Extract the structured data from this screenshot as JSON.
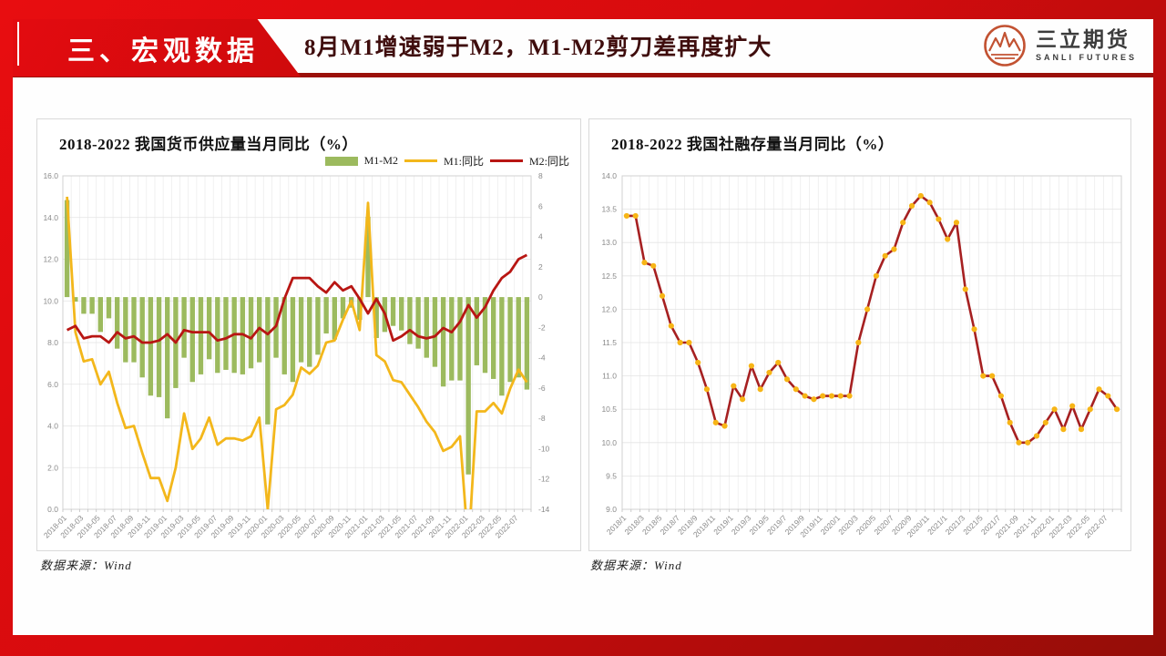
{
  "header": {
    "section_label": "三、宏观数据",
    "title": "8月M1增速弱于M2，M1-M2剪刀差再度扩大",
    "logo_name": "三立期货",
    "logo_subtitle": "SANLI FUTURES"
  },
  "panels": {
    "left": {
      "source": "数据来源：Wind"
    },
    "right": {
      "source": "数据来源：Wind"
    }
  },
  "colors": {
    "bar_green": "#9cba5e",
    "m1_yellow": "#f3b71b",
    "m2_red": "#b81613",
    "sf_line_red": "#a62021",
    "sf_marker_yellow": "#f7b516",
    "frame_red": "#d60b0e",
    "underline_dark_red": "#9b100a",
    "banner_text_dark_red": "#3f0d0d"
  },
  "chart_data": [
    {
      "type": "bar+line combo",
      "title": "2018-2022 我国货币供应量当月同比（%）",
      "legend": [
        "M1-M2",
        "M1:同比",
        "M2:同比"
      ],
      "months": 56,
      "x_range": "2018-01 to 2022-08 (monthly)",
      "x_labels": [
        "2018-01",
        "2018-03",
        "2018-05",
        "2018-07",
        "2018-09",
        "2018-11",
        "2019-01",
        "2019-03",
        "2019-05",
        "2019-07",
        "2019-09",
        "2019-11",
        "2020-01",
        "2020-03",
        "2020-05",
        "2020-07",
        "2020-09",
        "2020-11",
        "2021-01",
        "2021-03",
        "2021-05",
        "2021-07",
        "2021-09",
        "2021-11",
        "2022-01",
        "2022-03",
        "2022-05",
        "2022-07"
      ],
      "left_axis": {
        "min": 0,
        "max": 16,
        "step": 2,
        "ticks": [
          "0.0",
          "2.0",
          "4.0",
          "6.0",
          "8.0",
          "10.0",
          "12.0",
          "14.0",
          "16.0"
        ]
      },
      "right_axis": {
        "min": -14,
        "max": 8,
        "step": 2,
        "ticks": [
          "-14",
          "-12",
          "-10",
          "-8",
          "-6",
          "-4",
          "-2",
          "0",
          "2",
          "4",
          "6",
          "8"
        ]
      },
      "series": {
        "bars": {
          "name": "M1-M2",
          "axis": "right",
          "values": [
            6.4,
            -0.3,
            -1.1,
            -1.1,
            -2.3,
            -1.4,
            -3.4,
            -4.3,
            -4.3,
            -5.3,
            -6.5,
            -6.6,
            -8.0,
            -6.0,
            -4.0,
            -5.6,
            -5.1,
            -4.1,
            -5.0,
            -4.8,
            -5.0,
            -5.1,
            -4.7,
            -4.3,
            -8.4,
            -4.0,
            -5.1,
            -5.6,
            -4.3,
            -4.6,
            -3.8,
            -2.4,
            -2.8,
            -1.4,
            -0.7,
            -1.5,
            5.3,
            -2.7,
            -2.3,
            -1.9,
            -2.2,
            -3.1,
            -3.4,
            -4.0,
            -4.6,
            -5.9,
            -5.5,
            -5.5,
            -11.7,
            -4.5,
            -5.0,
            -5.4,
            -6.5,
            -5.6,
            -5.3,
            -6.1
          ]
        },
        "m1": {
          "name": "M1:同比",
          "axis": "left",
          "values": [
            15.0,
            8.5,
            7.1,
            7.2,
            6.0,
            6.6,
            5.1,
            3.9,
            4.0,
            2.7,
            1.5,
            1.5,
            0.4,
            2.0,
            4.6,
            2.9,
            3.4,
            4.4,
            3.1,
            3.4,
            3.4,
            3.3,
            3.5,
            4.4,
            0.0,
            4.8,
            5.0,
            5.5,
            6.8,
            6.5,
            6.9,
            8.0,
            8.1,
            9.1,
            10.0,
            8.6,
            14.7,
            7.4,
            7.1,
            6.2,
            6.1,
            5.5,
            4.9,
            4.2,
            3.7,
            2.8,
            3.0,
            3.5,
            -1.9,
            4.7,
            4.7,
            5.1,
            4.6,
            5.8,
            6.7,
            6.1
          ]
        },
        "m2": {
          "name": "M2:同比",
          "axis": "left",
          "values": [
            8.6,
            8.8,
            8.2,
            8.3,
            8.3,
            8.0,
            8.5,
            8.2,
            8.3,
            8.0,
            8.0,
            8.1,
            8.4,
            8.0,
            8.6,
            8.5,
            8.5,
            8.5,
            8.1,
            8.2,
            8.4,
            8.4,
            8.2,
            8.7,
            8.4,
            8.8,
            10.1,
            11.1,
            11.1,
            11.1,
            10.7,
            10.4,
            10.9,
            10.5,
            10.7,
            10.1,
            9.4,
            10.1,
            9.4,
            8.1,
            8.3,
            8.6,
            8.3,
            8.2,
            8.3,
            8.7,
            8.5,
            9.0,
            9.8,
            9.2,
            9.7,
            10.5,
            11.1,
            11.4,
            12.0,
            12.2
          ]
        }
      }
    },
    {
      "type": "line",
      "title": "2018-2022 我国社融存量当月同比（%）",
      "months": 56,
      "x_range": "2018/1 to 2022/8 (monthly)",
      "x_labels": [
        "2018/1",
        "2018/3",
        "2018/5",
        "2018/7",
        "2018/9",
        "2018/11",
        "2019/1",
        "2019/3",
        "2019/5",
        "2019/7",
        "2019/9",
        "2019/11",
        "2020/1",
        "2020/3",
        "2020/5",
        "2020/7",
        "2020/9",
        "2020/11",
        "2021/1",
        "2021/3",
        "2021/5",
        "2021/7",
        "2021-09",
        "2021-11",
        "2022-01",
        "2022-03",
        "2022-05",
        "2022-07"
      ],
      "y_axis": {
        "min": 9,
        "max": 14,
        "step": 0.5,
        "ticks": [
          "9.0",
          "9.5",
          "10.0",
          "10.5",
          "11.0",
          "11.5",
          "12.0",
          "12.5",
          "13.0",
          "13.5",
          "14.0"
        ]
      },
      "values": [
        13.4,
        13.4,
        12.7,
        12.65,
        12.2,
        11.75,
        11.5,
        11.5,
        11.2,
        10.8,
        10.3,
        10.25,
        10.85,
        10.65,
        11.15,
        10.8,
        11.05,
        11.2,
        10.95,
        10.8,
        10.7,
        10.65,
        10.7,
        10.7,
        10.7,
        10.7,
        11.5,
        12.0,
        12.5,
        12.8,
        12.9,
        13.3,
        13.55,
        13.7,
        13.6,
        13.35,
        13.05,
        13.3,
        12.3,
        11.7,
        11.0,
        11.0,
        10.7,
        10.3,
        10.0,
        10.0,
        10.1,
        10.3,
        10.5,
        10.2,
        10.55,
        10.2,
        10.5,
        10.8,
        10.7,
        10.5
      ]
    }
  ]
}
